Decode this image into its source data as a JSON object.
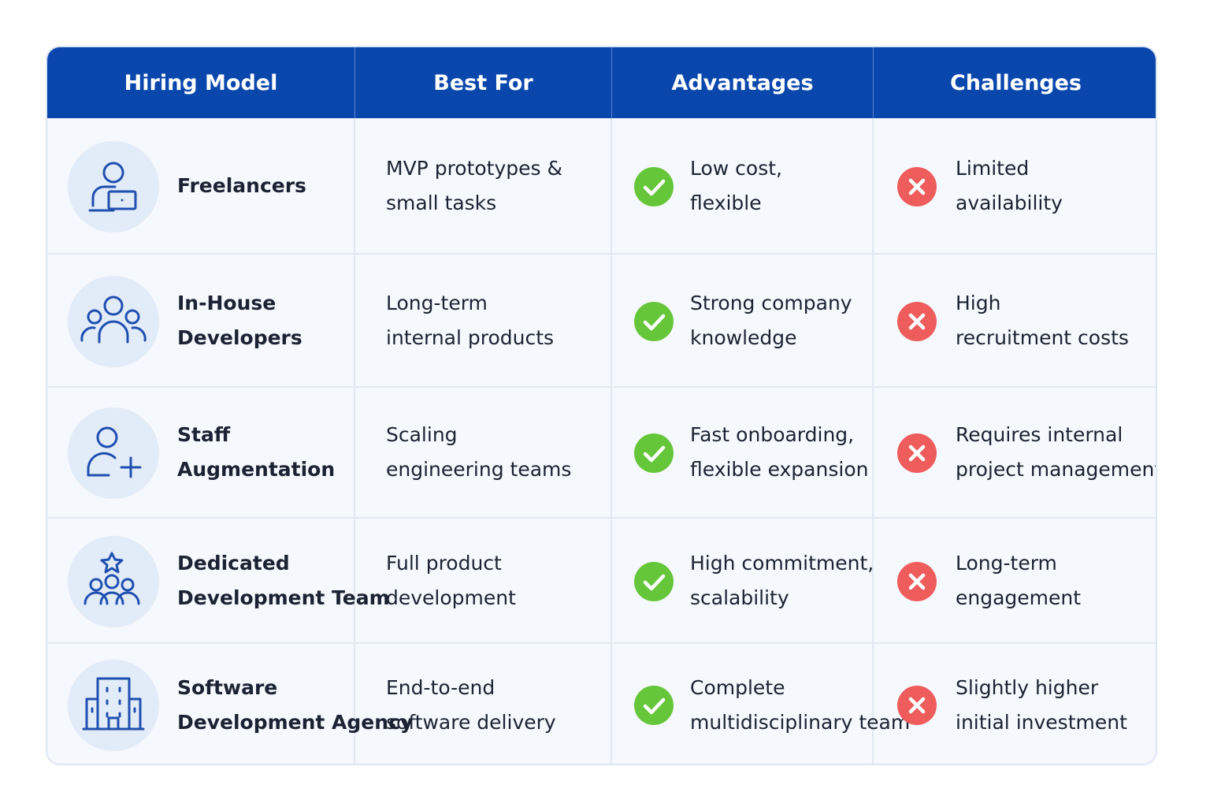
{
  "table": {
    "header": [
      "Hiring Model",
      "Best For",
      "Advantages",
      "Challenges"
    ],
    "rows": [
      {
        "model": [
          "Freelancers"
        ],
        "best_for": [
          "MVP prototypes &",
          "small tasks"
        ],
        "advantages": [
          "Low cost,",
          "flexible"
        ],
        "challenges": [
          "Limited",
          "availability"
        ]
      },
      {
        "model": [
          "In-House",
          "Developers"
        ],
        "best_for": [
          "Long-term",
          "internal products"
        ],
        "advantages": [
          "Strong company",
          "knowledge"
        ],
        "challenges": [
          "High",
          "recruitment costs"
        ]
      },
      {
        "model": [
          "Staff",
          "Augmentation"
        ],
        "best_for": [
          "Scaling",
          "engineering teams"
        ],
        "advantages": [
          "Fast onboarding,",
          "flexible expansion"
        ],
        "challenges": [
          "Requires internal",
          "project management"
        ]
      },
      {
        "model": [
          "Dedicated",
          "Development Team"
        ],
        "best_for": [
          "Full product",
          "development"
        ],
        "advantages": [
          "High commitment,",
          "scalability"
        ],
        "challenges": [
          "Long-term",
          "engagement"
        ]
      },
      {
        "model": [
          "Software",
          "Development Agency"
        ],
        "best_for": [
          "End-to-end",
          "software delivery"
        ],
        "advantages": [
          "Complete",
          "multidisciplinary team"
        ],
        "challenges": [
          "Slightly higher",
          "initial investment"
        ]
      }
    ]
  }
}
